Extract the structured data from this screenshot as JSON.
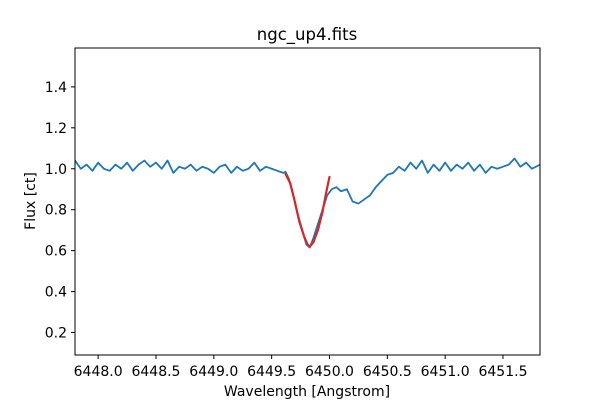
{
  "chart_data": {
    "type": "line",
    "title": "ngc_up4.fits",
    "xlabel": "Wavelength [Angstrom]",
    "ylabel": "Flux [ct]",
    "xlim": [
      6447.8,
      6451.82
    ],
    "ylim": [
      0.09,
      1.59
    ],
    "xticks": [
      6448.0,
      6448.5,
      6449.0,
      6449.5,
      6450.0,
      6450.5,
      6451.0,
      6451.5
    ],
    "xtick_labels": [
      "6448.0",
      "6448.5",
      "6449.0",
      "6449.5",
      "6450.0",
      "6450.5",
      "6451.0",
      "6451.5"
    ],
    "yticks": [
      0.2,
      0.4,
      0.6,
      0.8,
      1.0,
      1.2,
      1.4
    ],
    "ytick_labels": [
      "0.2",
      "0.4",
      "0.6",
      "0.8",
      "1.0",
      "1.2",
      "1.4"
    ],
    "grid": false,
    "colors": {
      "spectrum": "#1f77b4",
      "fit": "#d62728"
    },
    "series": [
      {
        "color": "#1f77b4",
        "points": [
          [
            6447.8,
            1.04
          ],
          [
            6447.85,
            1.0
          ],
          [
            6447.9,
            1.02
          ],
          [
            6447.95,
            0.99
          ],
          [
            6448.0,
            1.03
          ],
          [
            6448.05,
            1.0
          ],
          [
            6448.1,
            0.99
          ],
          [
            6448.15,
            1.02
          ],
          [
            6448.2,
            1.0
          ],
          [
            6448.25,
            1.03
          ],
          [
            6448.3,
            0.99
          ],
          [
            6448.35,
            1.02
          ],
          [
            6448.4,
            1.04
          ],
          [
            6448.45,
            1.01
          ],
          [
            6448.5,
            1.03
          ],
          [
            6448.55,
            1.0
          ],
          [
            6448.6,
            1.04
          ],
          [
            6448.65,
            0.98
          ],
          [
            6448.7,
            1.01
          ],
          [
            6448.75,
            1.0
          ],
          [
            6448.8,
            1.02
          ],
          [
            6448.85,
            0.99
          ],
          [
            6448.9,
            1.01
          ],
          [
            6448.95,
            1.0
          ],
          [
            6449.0,
            0.98
          ],
          [
            6449.05,
            1.01
          ],
          [
            6449.1,
            1.02
          ],
          [
            6449.15,
            0.98
          ],
          [
            6449.2,
            1.01
          ],
          [
            6449.25,
            0.99
          ],
          [
            6449.3,
            1.0
          ],
          [
            6449.35,
            1.03
          ],
          [
            6449.4,
            0.99
          ],
          [
            6449.45,
            1.01
          ],
          [
            6449.5,
            1.0
          ],
          [
            6449.55,
            0.99
          ],
          [
            6449.6,
            0.98
          ],
          [
            6449.62,
            0.985
          ],
          [
            6449.65,
            0.95
          ],
          [
            6449.68,
            0.89
          ],
          [
            6449.72,
            0.79
          ],
          [
            6449.76,
            0.71
          ],
          [
            6449.8,
            0.63
          ],
          [
            6449.83,
            0.615
          ],
          [
            6449.86,
            0.66
          ],
          [
            6449.9,
            0.73
          ],
          [
            6449.94,
            0.8
          ],
          [
            6449.98,
            0.87
          ],
          [
            6450.02,
            0.9
          ],
          [
            6450.06,
            0.91
          ],
          [
            6450.1,
            0.89
          ],
          [
            6450.15,
            0.9
          ],
          [
            6450.2,
            0.84
          ],
          [
            6450.25,
            0.83
          ],
          [
            6450.3,
            0.85
          ],
          [
            6450.35,
            0.87
          ],
          [
            6450.4,
            0.91
          ],
          [
            6450.45,
            0.94
          ],
          [
            6450.5,
            0.97
          ],
          [
            6450.55,
            0.98
          ],
          [
            6450.6,
            1.01
          ],
          [
            6450.65,
            0.99
          ],
          [
            6450.7,
            1.03
          ],
          [
            6450.75,
            1.0
          ],
          [
            6450.8,
            1.04
          ],
          [
            6450.85,
            0.98
          ],
          [
            6450.9,
            1.02
          ],
          [
            6450.95,
            0.99
          ],
          [
            6451.0,
            1.03
          ],
          [
            6451.05,
            0.99
          ],
          [
            6451.1,
            1.02
          ],
          [
            6451.15,
            1.0
          ],
          [
            6451.2,
            1.03
          ],
          [
            6451.25,
            0.99
          ],
          [
            6451.3,
            1.02
          ],
          [
            6451.35,
            0.98
          ],
          [
            6451.4,
            1.01
          ],
          [
            6451.45,
            1.0
          ],
          [
            6451.5,
            1.01
          ],
          [
            6451.55,
            1.02
          ],
          [
            6451.6,
            1.05
          ],
          [
            6451.65,
            1.01
          ],
          [
            6451.7,
            1.03
          ],
          [
            6451.75,
            1.0
          ],
          [
            6451.82,
            1.02
          ]
        ]
      },
      {
        "color": "#d62728",
        "points": [
          [
            6449.62,
            0.975
          ],
          [
            6449.66,
            0.93
          ],
          [
            6449.7,
            0.84
          ],
          [
            6449.74,
            0.74
          ],
          [
            6449.78,
            0.67
          ],
          [
            6449.81,
            0.63
          ],
          [
            6449.83,
            0.62
          ],
          [
            6449.86,
            0.64
          ],
          [
            6449.9,
            0.7
          ],
          [
            6449.94,
            0.79
          ],
          [
            6449.97,
            0.88
          ],
          [
            6450.0,
            0.96
          ]
        ]
      }
    ]
  }
}
